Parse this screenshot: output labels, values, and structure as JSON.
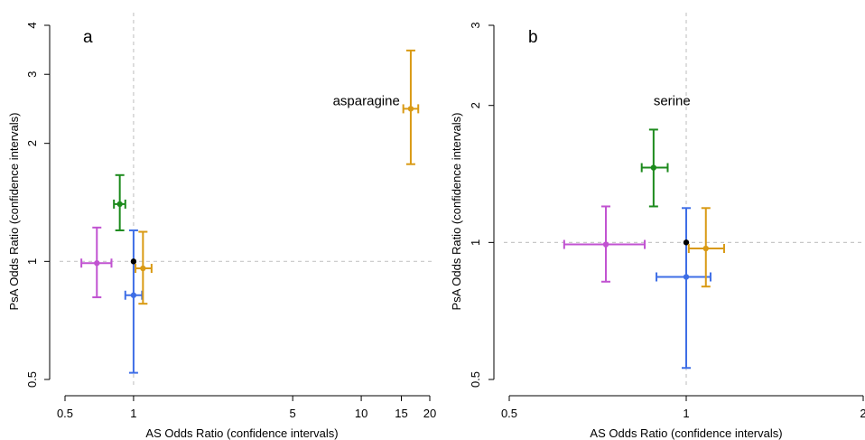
{
  "colors": {
    "purple": "#c153d1",
    "green": "#1c8a1c",
    "blue": "#3e6ee6",
    "orange": "#d99a14",
    "black": "#000000",
    "reference_line": "#c8c8c8",
    "axis": "#000000"
  },
  "chart_data": [
    {
      "type": "scatter",
      "panel_label": "a",
      "xlabel": "AS Odds Ratio (confidence intervals)",
      "ylabel": "PsA Odds Ratio (confidence intervals)",
      "xscale": "log",
      "yscale": "log",
      "xlim": [
        0.5,
        20
      ],
      "ylim": [
        0.5,
        4
      ],
      "xticks": [
        0.5,
        1,
        5,
        10,
        15,
        20
      ],
      "xtick_labels": [
        "0.5",
        "1",
        "5",
        "10",
        "15",
        "20"
      ],
      "yticks": [
        0.5,
        1,
        2,
        3,
        4
      ],
      "ytick_labels": [
        "0.5",
        "1",
        "2",
        "3",
        "4"
      ],
      "grid": false,
      "reference_lines": {
        "x": 1,
        "y": 1,
        "style": "dashed"
      },
      "annotation": {
        "text": "asparagine",
        "x": 7.5,
        "y": 2.5
      },
      "points": [
        {
          "color": "purple",
          "x": 0.69,
          "x_lo": 0.59,
          "x_hi": 0.8,
          "y": 0.99,
          "y_lo": 0.81,
          "y_hi": 1.22
        },
        {
          "color": "green",
          "x": 0.87,
          "x_lo": 0.82,
          "x_hi": 0.92,
          "y": 1.4,
          "y_lo": 1.2,
          "y_hi": 1.66
        },
        {
          "color": "blue",
          "x": 1.0,
          "x_lo": 0.92,
          "x_hi": 1.09,
          "y": 0.82,
          "y_lo": 0.52,
          "y_hi": 1.2
        },
        {
          "color": "black",
          "x": 1.0,
          "x_lo": 1.0,
          "x_hi": 1.0,
          "y": 1.0,
          "y_lo": 1.0,
          "y_hi": 1.0
        },
        {
          "color": "orange",
          "x": 1.1,
          "x_lo": 1.02,
          "x_hi": 1.2,
          "y": 0.96,
          "y_lo": 0.78,
          "y_hi": 1.19
        },
        {
          "color": "orange",
          "x": 16.5,
          "x_lo": 15.3,
          "x_hi": 17.8,
          "y": 2.45,
          "y_lo": 1.77,
          "y_hi": 3.45
        }
      ]
    },
    {
      "type": "scatter",
      "panel_label": "b",
      "xlabel": "AS Odds Ratio (confidence intervals)",
      "ylabel": "PsA Odds Ratio (confidence intervals)",
      "xscale": "log",
      "yscale": "log",
      "xlim": [
        0.5,
        2
      ],
      "ylim": [
        0.5,
        3
      ],
      "xticks": [
        0.5,
        1,
        2
      ],
      "xtick_labels": [
        "0.5",
        "1",
        "2"
      ],
      "yticks": [
        0.5,
        1,
        2,
        3
      ],
      "ytick_labels": [
        "0.5",
        "1",
        "2",
        "3"
      ],
      "grid": false,
      "reference_lines": {
        "x": 1,
        "y": 1,
        "style": "dashed"
      },
      "annotation": {
        "text": "serine",
        "x": 0.88,
        "y": 2.0
      },
      "points": [
        {
          "color": "purple",
          "x": 0.73,
          "x_lo": 0.62,
          "x_hi": 0.85,
          "y": 0.99,
          "y_lo": 0.82,
          "y_hi": 1.2
        },
        {
          "color": "green",
          "x": 0.88,
          "x_lo": 0.84,
          "x_hi": 0.93,
          "y": 1.46,
          "y_lo": 1.2,
          "y_hi": 1.77
        },
        {
          "color": "blue",
          "x": 1.0,
          "x_lo": 0.89,
          "x_hi": 1.1,
          "y": 0.84,
          "y_lo": 0.53,
          "y_hi": 1.19
        },
        {
          "color": "black",
          "x": 1.0,
          "x_lo": 1.0,
          "x_hi": 1.0,
          "y": 1.0,
          "y_lo": 1.0,
          "y_hi": 1.0
        },
        {
          "color": "orange",
          "x": 1.08,
          "x_lo": 1.01,
          "x_hi": 1.16,
          "y": 0.97,
          "y_lo": 0.8,
          "y_hi": 1.19
        }
      ]
    }
  ]
}
